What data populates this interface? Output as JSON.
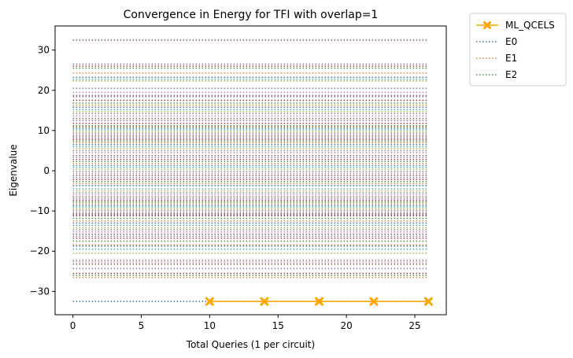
{
  "chart_data": {
    "type": "line",
    "title": "Convergence in Energy for TFI with overlap=1",
    "xlabel": "Total Queries (1 per circuit)",
    "ylabel": "Eigenvalue",
    "xlim": [
      -1.3,
      27.3
    ],
    "ylim": [
      -35.8,
      36.0
    ],
    "xticks": [
      0,
      5,
      10,
      15,
      20,
      25
    ],
    "yticks": [
      -30,
      -20,
      -10,
      0,
      10,
      20,
      30
    ],
    "grid": false,
    "legend_position": "outside-top-right",
    "legend": [
      {
        "label": "ML_QCELS",
        "color": "#ffa500",
        "style": "solid-x-marker"
      },
      {
        "label": "E0",
        "color": "#1f77b4",
        "style": "dotted"
      },
      {
        "label": "E1",
        "color": "#ff7f0e",
        "style": "dotted"
      },
      {
        "label": "E2",
        "color": "#2ca02c",
        "style": "dotted"
      }
    ],
    "series": [
      {
        "name": "ML_QCELS",
        "color": "#ffa500",
        "x": [
          10,
          14,
          18,
          22,
          26
        ],
        "y": [
          -32.5,
          -32.5,
          -32.5,
          -32.5,
          -32.5
        ]
      }
    ],
    "eigenvalue_lines": {
      "x_range": [
        0,
        26
      ],
      "palette": [
        "#1f77b4",
        "#ff7f0e",
        "#2ca02c",
        "#d62728",
        "#9467bd",
        "#8c564b",
        "#e377c2",
        "#7f7f7f",
        "#bcbd22",
        "#17becf"
      ],
      "values": [
        -32.5,
        -26.5,
        -26.0,
        -25.5,
        -24.3,
        -23.2,
        -22.7,
        -22.3,
        -20.5,
        -19.5,
        -18.7,
        -18.4,
        -17.5,
        -16.8,
        -16.3,
        -15.8,
        -15.2,
        -14.7,
        -14.2,
        -13.6,
        -13.0,
        -12.5,
        -11.8,
        -11.2,
        -10.9,
        -10.6,
        -10.2,
        -9.8,
        -9.4,
        -9.0,
        -8.6,
        -8.2,
        -7.8,
        -7.4,
        -7.0,
        -6.5,
        -6.0,
        -5.5,
        -5.0,
        -4.5,
        -3.7,
        -3.2,
        -2.7,
        -2.2,
        -1.7,
        -1.2,
        -0.7,
        -0.2,
        0.3,
        0.8,
        1.3,
        1.8,
        2.3,
        2.8,
        3.3,
        3.8,
        4.5,
        5.0,
        5.5,
        6.0,
        6.5,
        7.0,
        7.4,
        7.8,
        8.2,
        8.6,
        9.0,
        9.4,
        9.8,
        10.2,
        10.6,
        10.9,
        11.2,
        11.8,
        12.5,
        13.0,
        13.6,
        14.2,
        14.7,
        15.2,
        15.8,
        16.3,
        16.8,
        17.5,
        18.4,
        18.7,
        19.5,
        20.5,
        22.3,
        22.7,
        23.2,
        24.3,
        25.5,
        26.0,
        26.5,
        32.5
      ]
    }
  }
}
